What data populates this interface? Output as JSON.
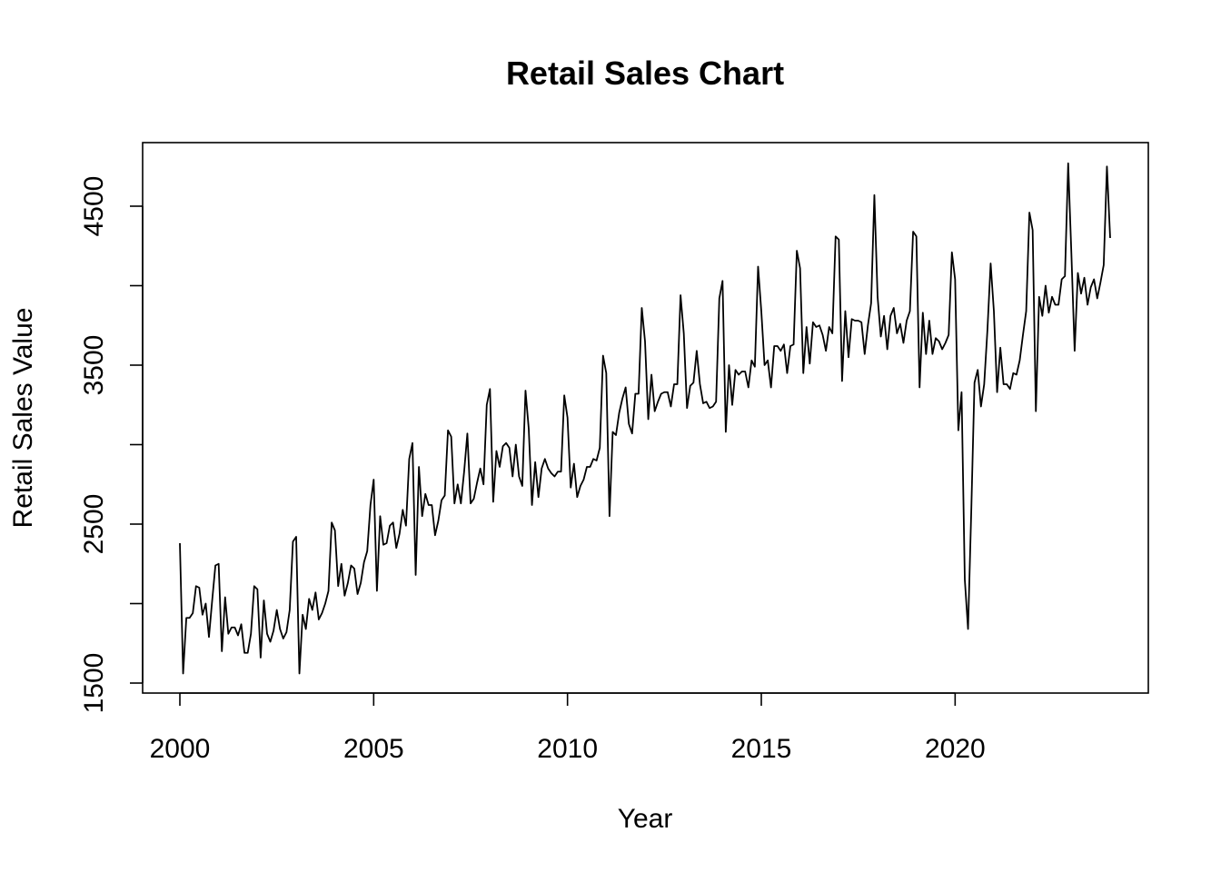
{
  "chart_data": {
    "type": "line",
    "title": "Retail Sales Chart",
    "xlabel": "Year",
    "ylabel": "Retail Sales Value",
    "x_start": 2000,
    "frequency": "monthly",
    "xlim": [
      2000,
      2024
    ],
    "ylim": [
      1500,
      4850
    ],
    "x_ticks": [
      2000,
      2005,
      2010,
      2015,
      2020
    ],
    "y_ticks": [
      1500,
      2000,
      2500,
      3000,
      3500,
      4000,
      4500
    ],
    "y_tick_labels": [
      {
        "value": 1500,
        "label": "1500"
      },
      {
        "value": 2500,
        "label": "2500"
      },
      {
        "value": 3500,
        "label": "3500"
      },
      {
        "value": 4500,
        "label": "4500"
      }
    ],
    "grid": false,
    "legend": "none",
    "line_color": "#000000",
    "series": [
      {
        "values": [
          2380,
          1560,
          1910,
          1910,
          1940,
          2110,
          2100,
          1930,
          2000,
          1790,
          2020,
          2240,
          2250,
          1700,
          2040,
          1810,
          1850,
          1850,
          1800,
          1870,
          1690,
          1690,
          1810,
          2110,
          2090,
          1660,
          2020,
          1810,
          1760,
          1830,
          1960,
          1840,
          1780,
          1820,
          1960,
          2390,
          2420,
          1560,
          1930,
          1840,
          2030,
          1960,
          2070,
          1900,
          1940,
          2000,
          2080,
          2510,
          2460,
          2110,
          2250,
          2050,
          2130,
          2240,
          2220,
          2060,
          2130,
          2260,
          2330,
          2620,
          2780,
          2080,
          2550,
          2370,
          2380,
          2490,
          2510,
          2350,
          2440,
          2590,
          2490,
          2910,
          3010,
          2180,
          2860,
          2550,
          2690,
          2620,
          2620,
          2430,
          2520,
          2650,
          2680,
          3090,
          3050,
          2630,
          2750,
          2630,
          2830,
          3070,
          2630,
          2660,
          2760,
          2850,
          2750,
          3250,
          3350,
          2640,
          2960,
          2860,
          2990,
          3010,
          2980,
          2800,
          3000,
          2800,
          2740,
          3340,
          3100,
          2620,
          2890,
          2670,
          2850,
          2910,
          2850,
          2820,
          2800,
          2830,
          2830,
          3310,
          3170,
          2730,
          2880,
          2670,
          2740,
          2780,
          2860,
          2860,
          2910,
          2900,
          2980,
          3560,
          3450,
          2550,
          3080,
          3060,
          3200,
          3290,
          3360,
          3130,
          3070,
          3320,
          3320,
          3860,
          3650,
          3160,
          3440,
          3210,
          3270,
          3320,
          3330,
          3330,
          3240,
          3380,
          3380,
          3940,
          3700,
          3230,
          3370,
          3390,
          3590,
          3380,
          3260,
          3270,
          3230,
          3240,
          3270,
          3920,
          4030,
          3080,
          3500,
          3250,
          3470,
          3440,
          3460,
          3460,
          3360,
          3530,
          3490,
          4120,
          3840,
          3500,
          3530,
          3360,
          3620,
          3620,
          3590,
          3630,
          3450,
          3620,
          3630,
          4220,
          4110,
          3450,
          3740,
          3510,
          3770,
          3740,
          3750,
          3690,
          3590,
          3740,
          3700,
          4310,
          4290,
          3400,
          3840,
          3550,
          3790,
          3780,
          3780,
          3770,
          3570,
          3750,
          3890,
          4570,
          3930,
          3680,
          3810,
          3600,
          3810,
          3860,
          3700,
          3760,
          3640,
          3780,
          3840,
          4340,
          4310,
          3360,
          3830,
          3570,
          3780,
          3570,
          3670,
          3650,
          3600,
          3640,
          3690,
          4210,
          4040,
          3090,
          3330,
          2150,
          1840,
          2580,
          3390,
          3470,
          3240,
          3380,
          3720,
          4140,
          3840,
          3330,
          3610,
          3380,
          3380,
          3350,
          3450,
          3440,
          3530,
          3690,
          3840,
          4460,
          4350,
          3210,
          3930,
          3810,
          4000,
          3830,
          3930,
          3880,
          3880,
          4040,
          4060,
          4770,
          4200,
          3590,
          4080,
          3950,
          4050,
          3880,
          3990,
          4040,
          3920,
          4020,
          4130,
          4750,
          4300
        ]
      }
    ]
  }
}
